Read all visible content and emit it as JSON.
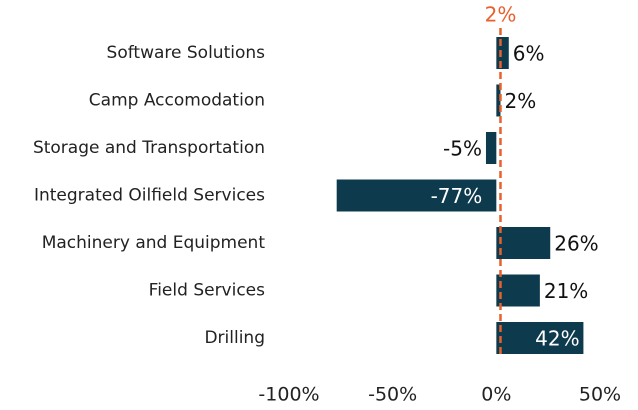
{
  "chart_data": {
    "type": "hbar",
    "categories": [
      "Software Solutions",
      "Camp Accomodation",
      "Storage and Transportation",
      "Integrated Oilfield Services",
      "Machinery and Equipment",
      "Field Services",
      "Drilling"
    ],
    "values": [
      6,
      2,
      -5,
      -77,
      26,
      21,
      42
    ],
    "value_labels": [
      "6%",
      "2%",
      "-5%",
      "-77%",
      "26%",
      "21%",
      "42%"
    ],
    "color": "#0e3a4e",
    "xlim": [
      -100,
      50
    ],
    "xticks": [
      {
        "value": -100,
        "label": "-100%"
      },
      {
        "value": -50,
        "label": "-50%"
      },
      {
        "value": 0,
        "label": "0%"
      },
      {
        "value": 50,
        "label": "50%"
      }
    ],
    "grid": false,
    "reference_line": {
      "value": 2,
      "label": "2%",
      "color": "#e8602c"
    }
  }
}
